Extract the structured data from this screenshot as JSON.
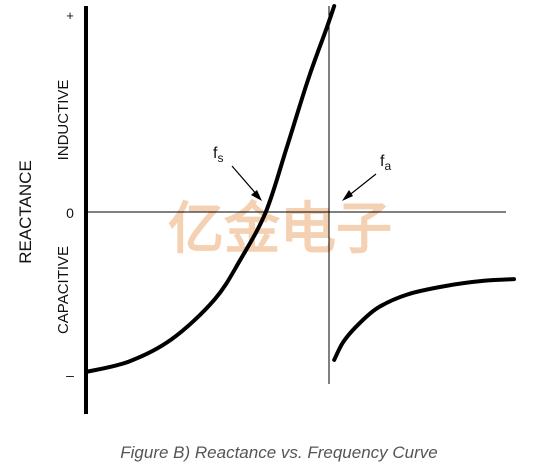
{
  "chart_data": {
    "type": "line",
    "ylabel": "REACTANCE",
    "region_labels": {
      "upper": "INDUCTIVE",
      "lower": "CAPACITIVE"
    },
    "y_ticks": {
      "plus": "+",
      "zero": "0",
      "minus": "–"
    },
    "annotations": {
      "fs": {
        "main": "f",
        "sub": "s"
      },
      "fa": {
        "main": "f",
        "sub": "a"
      }
    },
    "caption": "Figure B) Reactance vs. Frequency Curve",
    "watermark": "亿金电子",
    "ylim": [
      -1,
      1
    ],
    "xlim": [
      0,
      1
    ],
    "fs": 0.42,
    "fa": 0.58,
    "series": [
      {
        "segment": "below-fa",
        "x": [
          0.0,
          0.1,
          0.2,
          0.3,
          0.36,
          0.42,
          0.47,
          0.52,
          0.56,
          0.58
        ],
        "y": [
          -0.93,
          -0.87,
          -0.74,
          -0.51,
          -0.28,
          0.0,
          0.32,
          0.65,
          0.88,
          1.0
        ]
      },
      {
        "segment": "above-fa",
        "x": [
          0.58,
          0.6,
          0.63,
          0.68,
          0.75,
          0.84,
          0.93,
          1.0
        ],
        "y": [
          -0.86,
          -0.76,
          -0.67,
          -0.56,
          -0.48,
          -0.43,
          -0.4,
          -0.39
        ]
      }
    ]
  }
}
